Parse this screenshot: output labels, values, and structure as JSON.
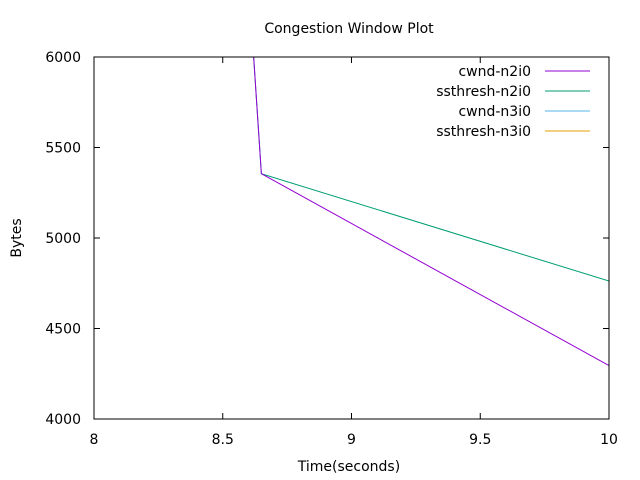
{
  "chart_data": {
    "type": "line",
    "title": "Congestion Window Plot",
    "xlabel": "Time(seconds)",
    "ylabel": "Bytes",
    "xlim": [
      8,
      10
    ],
    "ylim": [
      4000,
      6000
    ],
    "xticks": [
      8,
      8.5,
      9,
      9.5,
      10
    ],
    "yticks": [
      4000,
      4500,
      5000,
      5500,
      6000
    ],
    "legend_position": "top-right",
    "series": [
      {
        "name": "cwnd-n2i0",
        "color": "#9400d3",
        "x": [
          8.62,
          8.65,
          10
        ],
        "y": [
          6000,
          5355,
          4295
        ]
      },
      {
        "name": "ssthresh-n2i0",
        "color": "#009e73",
        "x": [
          8.62,
          8.65,
          10
        ],
        "y": [
          6000,
          5355,
          4762
        ]
      },
      {
        "name": "cwnd-n3i0",
        "color": "#56b4e9",
        "x": [],
        "y": []
      },
      {
        "name": "ssthresh-n3i0",
        "color": "#e69f00",
        "x": [],
        "y": []
      }
    ]
  }
}
